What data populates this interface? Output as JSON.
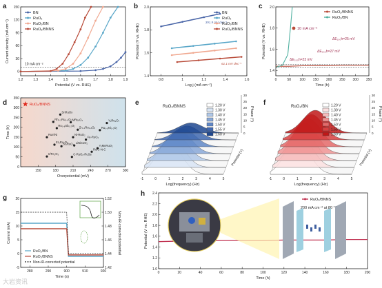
{
  "panels": [
    {
      "id": "a",
      "letter": "a",
      "chart_data": {
        "type": "line",
        "xlabel": "Potential (V vs. RHE)",
        "ylabel": "Current density (mA cm⁻²)",
        "xlim": [
          1.2,
          1.9
        ],
        "ylim": [
          -10,
          150
        ],
        "xticks": [
          1.2,
          1.3,
          1.4,
          1.5,
          1.6,
          1.7,
          1.8,
          1.9
        ],
        "yticks": [
          0,
          30,
          60,
          90,
          120,
          150
        ],
        "ref_line_label": "10 mA cm⁻²",
        "legend_position": "top-left",
        "series": [
          {
            "name": "BN",
            "color": "#4a66a8",
            "x": [
              1.2,
              1.6,
              1.7,
              1.75,
              1.8,
              1.84,
              1.87,
              1.9
            ],
            "y": [
              0,
              1,
              3,
              6,
              12,
              22,
              32,
              45
            ]
          },
          {
            "name": "RuO₂",
            "color": "#58a6c8",
            "x": [
              1.2,
              1.5,
              1.55,
              1.6,
              1.65,
              1.7,
              1.75,
              1.8,
              1.85
            ],
            "y": [
              0,
              2,
              6,
              15,
              32,
              58,
              90,
              125,
              150
            ]
          },
          {
            "name": "RuO₂/BN",
            "color": "#f0a890",
            "x": [
              1.2,
              1.45,
              1.5,
              1.55,
              1.6,
              1.65,
              1.7,
              1.75
            ],
            "y": [
              0,
              2,
              6,
              18,
              42,
              78,
              118,
              150
            ]
          },
          {
            "name": "RuO₂/BNNS",
            "color": "#b84a38",
            "x": [
              1.2,
              1.4,
              1.44,
              1.48,
              1.52,
              1.56,
              1.6,
              1.63,
              1.67
            ],
            "y": [
              0,
              1,
              6,
              18,
              40,
              68,
              98,
              125,
              150
            ]
          }
        ]
      }
    },
    {
      "id": "b",
      "letter": "b",
      "chart_data": {
        "type": "line",
        "xlabel": "Log j (mA cm⁻²)",
        "ylabel": "Potential (V vs. RHE)",
        "xlim": [
          0.7,
          1.6
        ],
        "ylim": [
          1.4,
          2.0
        ],
        "xticks": [
          0.8,
          1.0,
          1.2,
          1.4,
          1.6
        ],
        "yticks": [
          1.4,
          1.6,
          1.8,
          2.0
        ],
        "legend_position": "top-right",
        "series": [
          {
            "name": "BN",
            "color": "#4a66a8",
            "x": [
              0.8,
              1.0,
              1.2,
              1.35
            ],
            "y": [
              1.83,
              1.87,
              1.91,
              1.94
            ],
            "slope_label": "391.9 mV dec⁻¹"
          },
          {
            "name": "RuO₂",
            "color": "#58a6c8",
            "x": [
              0.9,
              1.1,
              1.3,
              1.5
            ],
            "y": [
              1.64,
              1.66,
              1.68,
              1.7
            ],
            "slope_label": ""
          },
          {
            "name": "RuO₂/BN",
            "color": "#f0a890",
            "x": [
              0.9,
              1.1,
              1.3,
              1.5
            ],
            "y": [
              1.58,
              1.6,
              1.62,
              1.64
            ],
            "slope_label": ""
          },
          {
            "name": "RuO₂/BNNS",
            "color": "#b84a38",
            "x": [
              0.95,
              1.15,
              1.35,
              1.55
            ],
            "y": [
              1.52,
              1.535,
              1.55,
              1.565
            ],
            "slope_label": "61.1 mV dec⁻¹"
          }
        ]
      }
    },
    {
      "id": "c",
      "letter": "c",
      "chart_data": {
        "type": "line",
        "xlabel": "Time (h)",
        "ylabel": "Potential (V vs. RHE)",
        "xlim": [
          0,
          350
        ],
        "ylim": [
          1.35,
          2.0
        ],
        "xticks": [
          0,
          50,
          100,
          150,
          200,
          250,
          300,
          350
        ],
        "yticks": [
          1.4,
          1.6,
          1.8,
          2.0
        ],
        "legend_position": "top-right",
        "condition_label": "10 mA cm⁻²",
        "annotations": [
          "ΔE₁₀₀h=25 mV",
          "ΔE₂₀₀h=27 mV",
          "ΔE₃₀₀h=23 mV"
        ],
        "series": [
          {
            "name": "RuO₂/BNNS",
            "color": "#b84a38",
            "x": [
              0,
              50,
              100,
              150,
              200,
              250,
              300,
              350
            ],
            "y": [
              1.44,
              1.44,
              1.445,
              1.445,
              1.445,
              1.45,
              1.45,
              1.45
            ]
          },
          {
            "name": "RuO₂/BN",
            "color": "#4fb0a0",
            "x": [
              0,
              25,
              45,
              55,
              62
            ],
            "y": [
              1.43,
              1.45,
              1.55,
              1.8,
              2.0
            ]
          }
        ]
      }
    },
    {
      "id": "d",
      "letter": "d",
      "chart_data": {
        "type": "scatter",
        "xlabel": "Overpotential (mV)",
        "ylabel": "Time (h)",
        "xlim": [
          120,
          300
        ],
        "ylim": [
          0,
          350
        ],
        "xticks": [
          150,
          180,
          210,
          240,
          270,
          300
        ],
        "yticks": [
          0,
          50,
          100,
          150,
          200,
          250,
          300,
          350
        ],
        "highlight": {
          "name": "RuO₂/BNNS",
          "x": 128,
          "y": 318,
          "color": "#e0281c"
        },
        "points": [
          {
            "label": "SnRuOx",
            "x": 188,
            "y": 265
          },
          {
            "label": "Rh₀.₂Ru₀.₈Oₓ",
            "x": 176,
            "y": 228
          },
          {
            "label": "MRu₂O₄",
            "x": 206,
            "y": 226
          },
          {
            "label": "Y₂Ru₂O₇",
            "x": 268,
            "y": 222
          },
          {
            "label": "Ru₀.₈Sb₀.₂O₂",
            "x": 182,
            "y": 196
          },
          {
            "label": "Zr₀.₂Ru₀.₈O₂",
            "x": 218,
            "y": 188
          },
          {
            "label": "Ru₀.₈Ni₀.₂O₂",
            "x": 256,
            "y": 186
          },
          {
            "label": "RuIr/Ni",
            "x": 165,
            "y": 150
          },
          {
            "label": "Ni-RuO₂",
            "x": 210,
            "y": 150
          },
          {
            "label": "Fe-RuO₂",
            "x": 232,
            "y": 138
          },
          {
            "label": "Er₂Ru₂O₇",
            "x": 178,
            "y": 112
          },
          {
            "label": "Sr₂RuO₄",
            "x": 190,
            "y": 104
          },
          {
            "label": "LiNiCoO₂",
            "x": 212,
            "y": 108
          },
          {
            "label": "YₓMnRuO₂",
            "x": 252,
            "y": 94
          },
          {
            "label": "Ru/C-N-C",
            "x": 242,
            "y": 76
          },
          {
            "label": "Ir/Fe₂O₃",
            "x": 165,
            "y": 52
          },
          {
            "label": "C-RuO₂-RuSe",
            "x": 208,
            "y": 50
          }
        ]
      }
    },
    {
      "id": "e",
      "letter": "e",
      "chart_data": {
        "type": "line",
        "title": "RuO₂/BNNS",
        "xlabel": "Log(frequency) (Hz)",
        "ylabel": "Phase (°)",
        "zlabel": "Potential (V)",
        "xlim": [
          -1,
          5
        ],
        "zlim": [
          0,
          30
        ],
        "xticks": [
          -1,
          0,
          1,
          2,
          3,
          4,
          5
        ],
        "zticks": [
          0,
          5,
          10,
          15,
          20,
          25,
          30
        ],
        "series": [
          {
            "name": "1.20 V",
            "color": "#ffffff",
            "peak_x": 1.0,
            "peak_y": 26
          },
          {
            "name": "1.30 V",
            "color": "#d8e4f4",
            "peak_x": 1.0,
            "peak_y": 24
          },
          {
            "name": "1.40 V",
            "color": "#b0c8e8",
            "peak_x": 1.1,
            "peak_y": 21
          },
          {
            "name": "1.45 V",
            "color": "#88a8d8",
            "peak_x": 1.2,
            "peak_y": 18
          },
          {
            "name": "1.50 V",
            "color": "#6088c8",
            "peak_x": 1.3,
            "peak_y": 14
          },
          {
            "name": "1.55 V",
            "color": "#4068b0",
            "peak_x": 1.4,
            "peak_y": 11
          },
          {
            "name": "1.60 V",
            "color": "#1f4890",
            "peak_x": 1.5,
            "peak_y": 8
          }
        ]
      }
    },
    {
      "id": "f",
      "letter": "f",
      "chart_data": {
        "type": "line",
        "title": "RuO₂/BN",
        "xlabel": "Log(frequency) (Hz)",
        "ylabel": "Phase (°)",
        "zlabel": "Potential (V)",
        "xlim": [
          -1,
          5
        ],
        "zlim": [
          0,
          30
        ],
        "xticks": [
          -1,
          0,
          1,
          2,
          3,
          4,
          5
        ],
        "zticks": [
          0,
          5,
          10,
          15,
          20,
          25,
          30
        ],
        "series": [
          {
            "name": "1.20 V",
            "color": "#ffffff",
            "peak_x": 1.0,
            "peak_y": 27
          },
          {
            "name": "1.30 V",
            "color": "#fbe0e0",
            "peak_x": 1.0,
            "peak_y": 26
          },
          {
            "name": "1.40 V",
            "color": "#f6bcbc",
            "peak_x": 1.0,
            "peak_y": 25
          },
          {
            "name": "1.45 V",
            "color": "#f09494",
            "peak_x": 1.0,
            "peak_y": 24
          },
          {
            "name": "1.50 V",
            "color": "#e56a6a",
            "peak_x": 1.1,
            "peak_y": 22
          },
          {
            "name": "1.55 V",
            "color": "#d84040",
            "peak_x": 1.1,
            "peak_y": 20
          },
          {
            "name": "1.60 V",
            "color": "#c01818",
            "peak_x": 1.2,
            "peak_y": 18
          }
        ]
      }
    },
    {
      "id": "g",
      "letter": "g",
      "chart_data": {
        "type": "line",
        "xlabel": "Time (s)",
        "ylabel": "Current (mA)",
        "y2label": "Non-iR-corrected potential",
        "xlim": [
          275,
          925
        ],
        "ylim": [
          -5,
          20
        ],
        "y2lim": [
          1.42,
          1.52
        ],
        "xticks": [
          280,
          290,
          300,
          310,
          320
        ],
        "xticklabels": [
          "280",
          "290",
          "900",
          "910",
          "920"
        ],
        "yticks": [
          -5,
          0,
          5,
          10,
          15,
          20
        ],
        "y2ticks": [
          1.42,
          1.44,
          1.46,
          1.48,
          1.5,
          1.52
        ],
        "legend_position": "bottom-left",
        "series": [
          {
            "name": "RuO₂/BN",
            "color": "#58a6c8",
            "x": [
              275,
              290,
              300,
              301,
              310,
              320
            ],
            "y": [
              11,
              11,
              11,
              -1,
              -1,
              -1
            ]
          },
          {
            "name": "RuO₂/BNNS",
            "color": "#b84a38",
            "x": [
              275,
              290,
              300,
              301,
              310,
              320
            ],
            "y": [
              9,
              9,
              9,
              -0.5,
              -0.5,
              -0.5
            ]
          },
          {
            "name": "Non-iR-corrected potential",
            "color": "#222222",
            "x": [
              275,
              300,
              301,
              320
            ],
            "y": [
              1.5,
              1.5,
              1.44,
              1.44
            ]
          }
        ]
      }
    },
    {
      "id": "h",
      "letter": "h",
      "chart_data": {
        "type": "line",
        "xlabel": "Time (h)",
        "ylabel": "Potential (V vs. RHE)",
        "xlim": [
          0,
          200
        ],
        "ylim": [
          1.0,
          2.4
        ],
        "xticks": [
          0,
          20,
          40,
          60,
          80,
          100,
          120,
          140,
          160,
          180,
          200
        ],
        "yticks": [
          1.0,
          1.2,
          1.4,
          1.6,
          1.8,
          2.0,
          2.2,
          2.4
        ],
        "legend_position": "top-right",
        "condition_label": "200 mA cm⁻² at 80 °C",
        "series": [
          {
            "name": "RuO₂/BNNS",
            "color": "#c03050",
            "x": [
              0,
              20,
              40,
              60,
              80,
              100,
              120,
              140,
              160,
              180,
              200
            ],
            "y": [
              1.5,
              1.51,
              1.51,
              1.52,
              1.52,
              1.52,
              1.53,
              1.53,
              1.53,
              1.54,
              1.54
            ]
          }
        ]
      }
    }
  ],
  "watermark": "大岩资讯"
}
